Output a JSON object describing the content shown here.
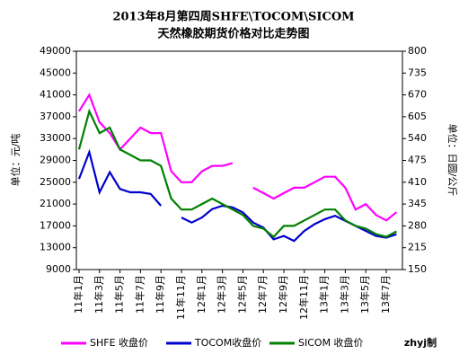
{
  "chart_data": {
    "type": "line",
    "title": "2013年8月第四周SHFE\\TOCOM\\SICOM",
    "subtitle": "天然橡胶期货价格对比走势图",
    "ylabel": "单位：元/吨",
    "y2label": "单位：日圆/公斤",
    "footer": "zhyj制",
    "categories": [
      "11年1月",
      null,
      "11年3月",
      null,
      "11年5月",
      null,
      "11年7月",
      null,
      "11年9月",
      null,
      "11年11月",
      null,
      "12年1月",
      null,
      "12年3月",
      null,
      "12年5月",
      null,
      "12年7月",
      null,
      "12年9月",
      null,
      "12年11月",
      null,
      "13年1月",
      null,
      "13年3月",
      null,
      "13年5月",
      null,
      "13年7月",
      null
    ],
    "ylim": [
      9000,
      49000
    ],
    "yticks": [
      9000,
      13000,
      17000,
      21000,
      25000,
      29000,
      33000,
      37000,
      41000,
      45000,
      49000
    ],
    "y2lim": [
      150,
      800
    ],
    "y2ticks": [
      150,
      215,
      280,
      345,
      410,
      475,
      540,
      605,
      670,
      735,
      800
    ],
    "series": [
      {
        "name": "SHFE 收盘价",
        "color": "#ff00ff",
        "values": [
          38000,
          41000,
          36000,
          34000,
          31000,
          33000,
          35000,
          34000,
          34000,
          27000,
          25000,
          25000,
          27000,
          28000,
          28000,
          28500,
          null,
          24000,
          23000,
          22000,
          23000,
          24000,
          24000,
          25000,
          26000,
          26000,
          24000,
          20000,
          21000,
          19000,
          18000,
          19500
        ]
      },
      {
        "name": "TOCOM收盘价",
        "color": "#0000cc",
        "axis": "y2",
        "values": [
          420,
          500,
          380,
          440,
          390,
          380,
          380,
          375,
          340,
          null,
          305,
          290,
          305,
          330,
          340,
          335,
          320,
          290,
          275,
          240,
          250,
          235,
          265,
          285,
          300,
          310,
          295,
          280,
          265,
          250,
          245,
          255
        ]
      },
      {
        "name": "SICOM 收盘价",
        "color": "#008000",
        "values": [
          31000,
          38000,
          34000,
          35000,
          31000,
          30000,
          29000,
          29000,
          28000,
          22000,
          20000,
          20000,
          21000,
          22000,
          21000,
          20000,
          19000,
          17000,
          16500,
          15000,
          17000,
          17000,
          18000,
          19000,
          20000,
          20000,
          18000,
          17000,
          16500,
          15500,
          15000,
          16000
        ]
      }
    ]
  }
}
